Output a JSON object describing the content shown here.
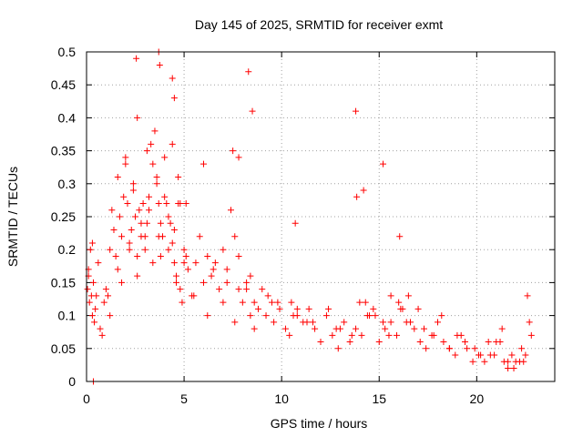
{
  "chart_data": {
    "type": "scatter",
    "title": "Day 145 of 2025, SRMTID for receiver exmt",
    "xlabel": "GPS time / hours",
    "ylabel": "SRMTID / TECUs",
    "xlim": [
      0,
      24
    ],
    "ylim": [
      0,
      0.5
    ],
    "xticks": [
      0,
      5,
      10,
      15,
      20
    ],
    "xtick_labels": [
      "0",
      "5",
      "10",
      "15",
      "20"
    ],
    "yticks": [
      0,
      0.05,
      0.1,
      0.15,
      0.2,
      0.25,
      0.3,
      0.35,
      0.4,
      0.45,
      0.5
    ],
    "ytick_labels": [
      "0",
      "0.05",
      "0.1",
      "0.15",
      "0.2",
      "0.25",
      "0.3",
      "0.35",
      "0.4",
      "0.45",
      "0.5"
    ],
    "grid": true,
    "marker": "+",
    "marker_color": "#ff0000",
    "series": [
      {
        "name": "SRMTID",
        "note": "representative sample of the dense point cloud (values in hours, TECU)",
        "x": [
          0.05,
          0.1,
          0.15,
          0.2,
          0.25,
          0.3,
          0.35,
          0.4,
          0.45,
          0.5,
          0.6,
          0.7,
          0.8,
          0.9,
          1.0,
          1.1,
          1.2,
          1.3,
          1.4,
          1.5,
          1.6,
          1.7,
          1.8,
          1.9,
          2.0,
          2.1,
          2.2,
          2.3,
          2.4,
          2.5,
          2.6,
          2.7,
          2.8,
          2.9,
          3.0,
          3.1,
          3.2,
          3.3,
          3.4,
          3.5,
          3.6,
          3.7,
          3.8,
          3.9,
          4.0,
          4.1,
          4.2,
          4.3,
          4.4,
          4.5,
          4.6,
          4.7,
          4.8,
          4.9,
          5.0,
          5.2,
          5.4,
          5.6,
          5.8,
          6.0,
          6.2,
          6.4,
          6.6,
          6.8,
          7.0,
          7.2,
          7.4,
          7.6,
          7.8,
          8.0,
          8.2,
          8.4,
          8.6,
          8.8,
          9.0,
          9.3,
          9.6,
          9.9,
          10.2,
          10.5,
          10.8,
          11.1,
          11.4,
          11.7,
          12.0,
          12.3,
          12.6,
          12.9,
          13.2,
          13.5,
          13.8,
          14.1,
          14.4,
          14.7,
          15.0,
          15.3,
          15.6,
          15.9,
          16.2,
          16.5,
          16.8,
          17.1,
          17.4,
          17.7,
          18.0,
          18.3,
          18.6,
          18.9,
          19.2,
          19.5,
          19.8,
          20.1,
          20.4,
          20.7,
          21.0,
          21.3,
          21.6,
          21.9,
          22.2,
          22.5,
          22.8,
          0.1,
          0.3,
          1.2,
          1.8,
          2.2,
          2.6,
          3.0,
          3.4,
          3.8,
          4.2,
          4.6,
          5.0,
          5.5,
          6.2,
          7.0,
          7.6,
          8.2,
          8.6,
          9.2,
          9.8,
          10.4,
          10.8,
          11.3,
          12.0,
          12.8,
          13.6,
          14.3,
          14.8,
          15.2,
          15.6,
          16.1,
          16.6,
          17.3,
          18.2,
          19.0,
          19.9,
          20.6,
          21.2,
          21.8,
          22.4,
          22.7,
          2.0,
          2.4,
          2.8,
          3.2,
          3.6,
          4.0,
          4.4,
          4.8,
          1.6,
          3.7,
          4.5,
          5.1,
          6.5,
          7.2,
          7.8,
          8.4,
          9.5,
          10.6,
          11.6,
          12.4,
          13.0,
          14.0,
          14.5,
          15.5,
          16.0,
          16.4,
          17.0,
          17.8,
          18.6,
          19.4,
          20.2,
          20.9,
          21.4,
          21.6,
          22.0,
          22.3,
          22.6,
          2.55,
          3.7,
          3.75,
          4.4,
          4.5,
          8.3,
          8.5,
          13.8,
          15.2,
          7.5,
          7.8,
          6.0,
          3.1,
          2.6,
          13.85,
          10.7,
          16.05,
          14.2,
          4.7,
          5.1,
          0.35
        ],
        "y": [
          0.14,
          0.17,
          0.12,
          0.2,
          0.13,
          0.1,
          0.15,
          0.09,
          0.11,
          0.13,
          0.18,
          0.08,
          0.07,
          0.12,
          0.14,
          0.13,
          0.2,
          0.26,
          0.23,
          0.19,
          0.31,
          0.25,
          0.22,
          0.28,
          0.34,
          0.27,
          0.21,
          0.23,
          0.3,
          0.25,
          0.19,
          0.26,
          0.22,
          0.27,
          0.2,
          0.24,
          0.28,
          0.36,
          0.33,
          0.38,
          0.31,
          0.27,
          0.19,
          0.22,
          0.34,
          0.27,
          0.25,
          0.24,
          0.21,
          0.18,
          0.16,
          0.27,
          0.14,
          0.12,
          0.2,
          0.17,
          0.13,
          0.18,
          0.22,
          0.15,
          0.19,
          0.16,
          0.18,
          0.14,
          0.2,
          0.17,
          0.26,
          0.22,
          0.19,
          0.12,
          0.14,
          0.1,
          0.12,
          0.11,
          0.14,
          0.13,
          0.09,
          0.11,
          0.08,
          0.12,
          0.1,
          0.09,
          0.11,
          0.08,
          0.06,
          0.1,
          0.07,
          0.05,
          0.09,
          0.06,
          0.08,
          0.07,
          0.1,
          0.11,
          0.06,
          0.08,
          0.09,
          0.07,
          0.11,
          0.13,
          0.08,
          0.06,
          0.05,
          0.07,
          0.09,
          0.06,
          0.05,
          0.04,
          0.07,
          0.05,
          0.03,
          0.04,
          0.03,
          0.04,
          0.06,
          0.08,
          0.03,
          0.02,
          0.03,
          0.04,
          0.07,
          0.16,
          0.21,
          0.1,
          0.15,
          0.2,
          0.16,
          0.22,
          0.18,
          0.24,
          0.2,
          0.15,
          0.18,
          0.13,
          0.1,
          0.12,
          0.09,
          0.15,
          0.08,
          0.1,
          0.12,
          0.07,
          0.11,
          0.09,
          0.06,
          0.08,
          0.07,
          0.12,
          0.1,
          0.09,
          0.13,
          0.11,
          0.09,
          0.08,
          0.1,
          0.07,
          0.05,
          0.06,
          0.06,
          0.04,
          0.03,
          0.09,
          0.33,
          0.29,
          0.24,
          0.26,
          0.3,
          0.28,
          0.36,
          0.27,
          0.17,
          0.22,
          0.23,
          0.19,
          0.17,
          0.15,
          0.14,
          0.16,
          0.12,
          0.1,
          0.09,
          0.11,
          0.08,
          0.12,
          0.1,
          0.07,
          0.12,
          0.09,
          0.11,
          0.07,
          0.05,
          0.06,
          0.04,
          0.04,
          0.03,
          0.02,
          0.03,
          0.05,
          0.13,
          0.49,
          0.5,
          0.48,
          0.46,
          0.43,
          0.47,
          0.41,
          0.41,
          0.33,
          0.35,
          0.34,
          0.33,
          0.35,
          0.4,
          0.28,
          0.24,
          0.22,
          0.29,
          0.31,
          0.27,
          0.0
        ]
      }
    ]
  }
}
